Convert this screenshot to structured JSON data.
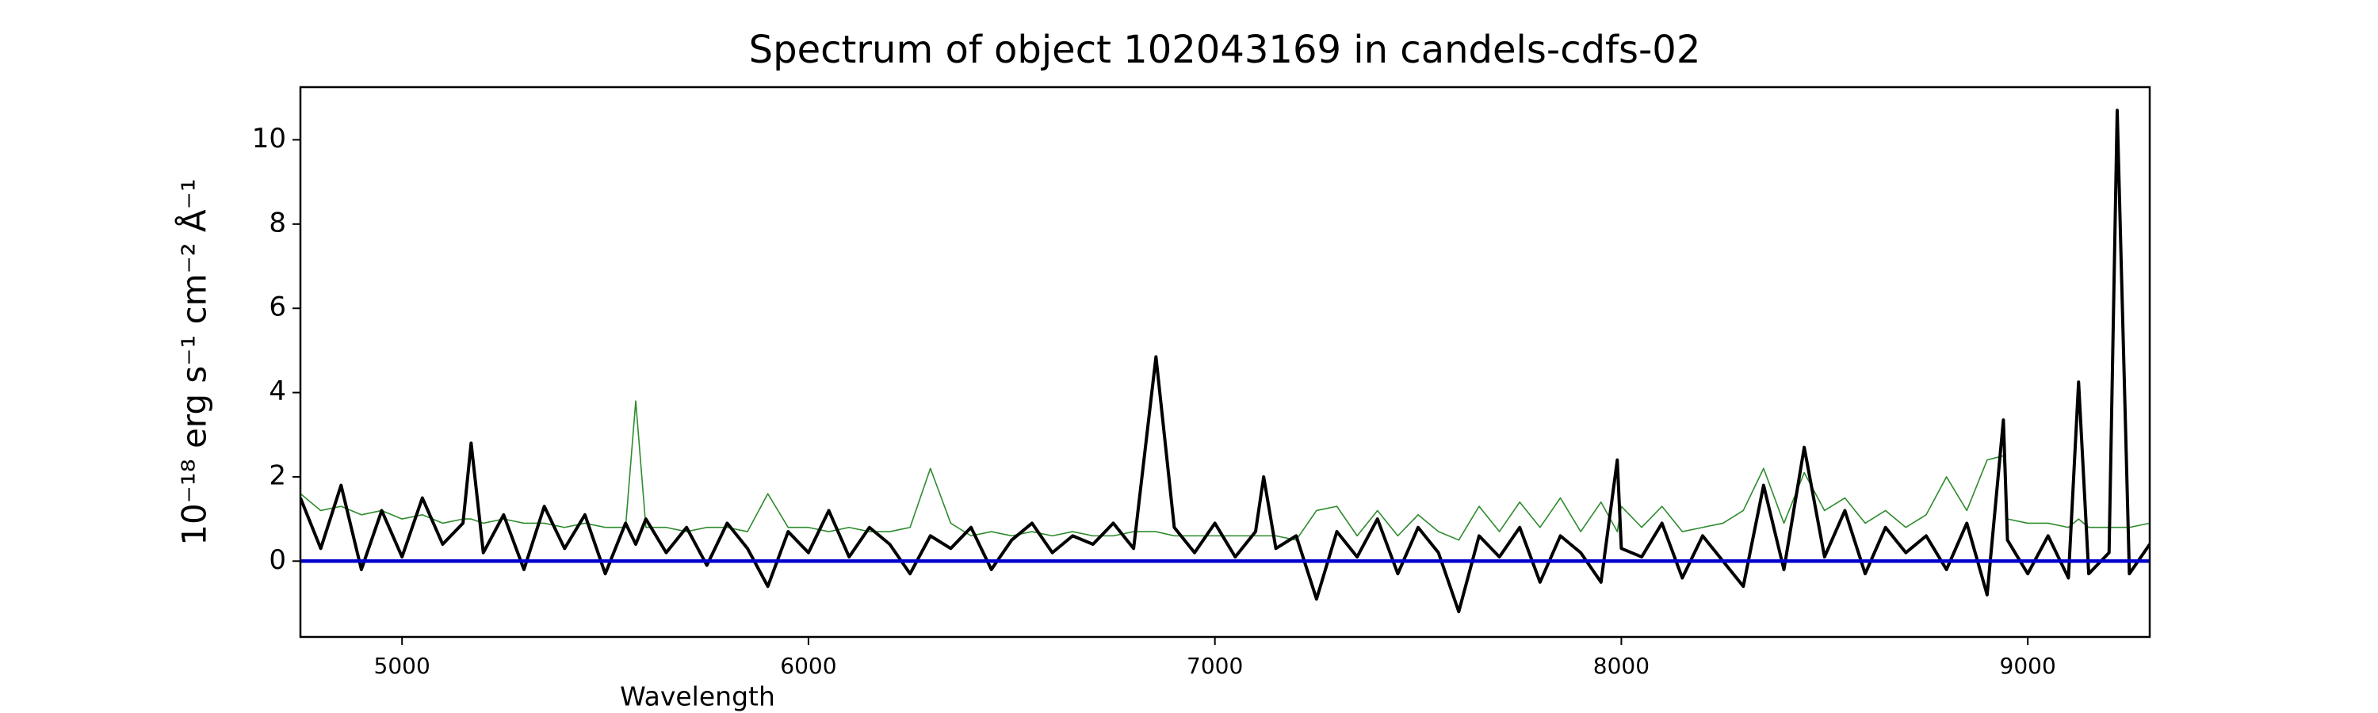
{
  "chart_data": {
    "type": "line",
    "title": "Spectrum of object 102043169 in candels-cdfs-02",
    "xlabel": "Wavelength",
    "ylabel": "10⁻¹⁸ erg s⁻¹ cm⁻² Å⁻¹",
    "xlim": [
      4750,
      9300
    ],
    "ylim": [
      -1.8,
      11.25
    ],
    "xticks": [
      5000,
      6000,
      7000,
      8000,
      9000
    ],
    "yticks": [
      0,
      2,
      4,
      6,
      8,
      10
    ],
    "x": [
      4750,
      4800,
      4850,
      4900,
      4950,
      5000,
      5050,
      5100,
      5150,
      5170,
      5200,
      5250,
      5300,
      5350,
      5400,
      5450,
      5500,
      5550,
      5575,
      5600,
      5650,
      5700,
      5750,
      5800,
      5850,
      5900,
      5950,
      6000,
      6050,
      6100,
      6150,
      6200,
      6250,
      6300,
      6350,
      6400,
      6450,
      6500,
      6550,
      6600,
      6650,
      6700,
      6750,
      6800,
      6855,
      6900,
      6950,
      7000,
      7050,
      7100,
      7120,
      7150,
      7200,
      7250,
      7300,
      7350,
      7400,
      7450,
      7500,
      7550,
      7600,
      7650,
      7700,
      7750,
      7800,
      7850,
      7900,
      7950,
      7990,
      8000,
      8050,
      8100,
      8150,
      8200,
      8250,
      8300,
      8350,
      8400,
      8450,
      8500,
      8550,
      8600,
      8650,
      8700,
      8750,
      8800,
      8850,
      8900,
      8940,
      8950,
      9000,
      9050,
      9100,
      9125,
      9150,
      9200,
      9220,
      9250,
      9300
    ],
    "series": [
      {
        "color": "#2e8b2e",
        "width": 1.6,
        "values": [
          1.6,
          1.2,
          1.3,
          1.1,
          1.2,
          1.0,
          1.1,
          0.9,
          1.0,
          1.0,
          0.9,
          1.0,
          0.9,
          0.9,
          0.8,
          0.9,
          0.8,
          0.8,
          3.8,
          0.8,
          0.8,
          0.7,
          0.8,
          0.8,
          0.7,
          1.6,
          0.8,
          0.8,
          0.7,
          0.8,
          0.7,
          0.7,
          0.8,
          2.2,
          0.9,
          0.6,
          0.7,
          0.6,
          0.7,
          0.6,
          0.7,
          0.6,
          0.6,
          0.7,
          0.7,
          0.6,
          0.6,
          0.6,
          0.6,
          0.6,
          0.6,
          0.6,
          0.5,
          1.2,
          1.3,
          0.6,
          1.2,
          0.6,
          1.1,
          0.7,
          0.5,
          1.3,
          0.7,
          1.4,
          0.8,
          1.5,
          0.7,
          1.4,
          0.7,
          1.3,
          0.8,
          1.3,
          0.7,
          0.8,
          0.9,
          1.2,
          2.2,
          0.9,
          2.1,
          1.2,
          1.5,
          0.9,
          1.2,
          0.8,
          1.1,
          2.0,
          1.2,
          2.4,
          2.5,
          1.0,
          0.9,
          0.9,
          0.8,
          1.0,
          0.8,
          0.8,
          0.8,
          0.8,
          0.9
        ]
      },
      {
        "color": "#000000",
        "width": 4,
        "values": [
          1.5,
          0.3,
          1.8,
          -0.2,
          1.2,
          0.1,
          1.5,
          0.4,
          0.9,
          2.8,
          0.2,
          1.1,
          -0.2,
          1.3,
          0.3,
          1.1,
          -0.3,
          0.9,
          0.4,
          1.0,
          0.2,
          0.8,
          -0.1,
          0.9,
          0.3,
          -0.6,
          0.7,
          0.2,
          1.2,
          0.1,
          0.8,
          0.4,
          -0.3,
          0.6,
          0.3,
          0.8,
          -0.2,
          0.5,
          0.9,
          0.2,
          0.6,
          0.4,
          0.9,
          0.3,
          4.85,
          0.8,
          0.2,
          0.9,
          0.1,
          0.7,
          2.0,
          0.3,
          0.6,
          -0.9,
          0.7,
          0.1,
          1.0,
          -0.3,
          0.8,
          0.2,
          -1.2,
          0.6,
          0.1,
          0.8,
          -0.5,
          0.6,
          0.2,
          -0.5,
          2.4,
          0.3,
          0.1,
          0.9,
          -0.4,
          0.6,
          0.0,
          -0.6,
          1.8,
          -0.2,
          2.7,
          0.1,
          1.2,
          -0.3,
          0.8,
          0.2,
          0.6,
          -0.2,
          0.9,
          -0.8,
          3.35,
          0.5,
          -0.3,
          0.6,
          -0.4,
          4.25,
          -0.3,
          0.2,
          10.7,
          -0.3,
          0.4
        ]
      },
      {
        "color": "#0000cc",
        "width": 4.5,
        "x": [
          4750,
          9300
        ],
        "values": [
          0,
          0
        ]
      }
    ]
  }
}
